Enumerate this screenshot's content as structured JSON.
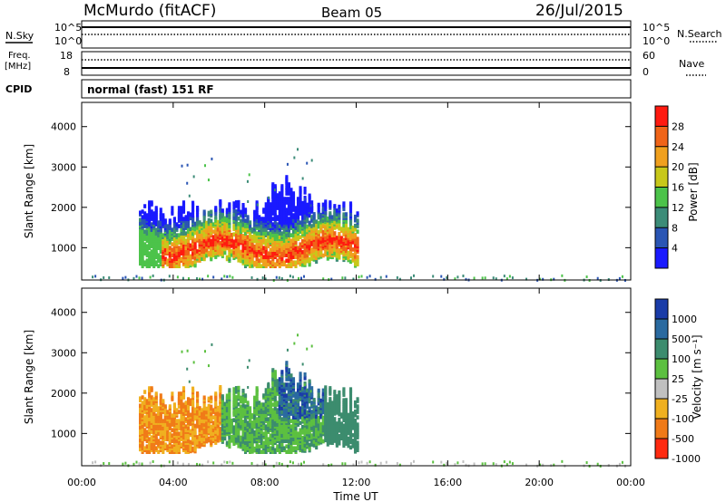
{
  "header": {
    "title": "McMurdo (fitACF)",
    "beam": "Beam 05",
    "date": "26/Jul/2015"
  },
  "status_panels": {
    "nsky_label": "N.Sky",
    "nsearch_label": "N.Search",
    "noise_ticks_left": [
      "10^5",
      "10^0"
    ],
    "noise_ticks_right": [
      "10^5",
      "10^0"
    ],
    "freq_label_line1": "Freq.",
    "freq_label_line2": "[MHz]",
    "freq_ticks": [
      "18",
      "8"
    ],
    "nave_label": "Nave",
    "nave_ticks": [
      "60",
      "0"
    ],
    "cpid_label": "CPID",
    "cpid_text": "normal (fast) 151 RF"
  },
  "chart_data": [
    {
      "type": "heatmap",
      "name": "power",
      "ylabel": "Slant Range [km]",
      "xlabel": "",
      "x_ticks": [],
      "y_ticks": [
        "1000",
        "2000",
        "3000",
        "4000"
      ],
      "ylim": [
        200,
        4600
      ],
      "colorbar": {
        "label": "Power [dB]",
        "ticks": [
          "4",
          "8",
          "12",
          "16",
          "20",
          "24",
          "28"
        ],
        "colors": [
          "#1a1aff",
          "#2a55b4",
          "#3c8c78",
          "#4cc34a",
          "#c8c81a",
          "#f0a01e",
          "#f06418",
          "#ff1a10"
        ]
      }
    },
    {
      "type": "heatmap",
      "name": "velocity",
      "ylabel": "Slant Range [km]",
      "xlabel": "Time UT",
      "x_ticks": [
        "00:00",
        "04:00",
        "08:00",
        "12:00",
        "16:00",
        "20:00",
        "00:00"
      ],
      "y_ticks": [
        "1000",
        "2000",
        "3000",
        "4000"
      ],
      "ylim": [
        200,
        4600
      ],
      "colorbar": {
        "label": "Velocity [m s⁻¹]",
        "ticks": [
          "1000",
          "500",
          "100",
          "25",
          "-25",
          "-100",
          "-500",
          "-1000"
        ],
        "colors": [
          "#1a3ca8",
          "#2a6aa0",
          "#3c8c6e",
          "#5cc040",
          "#c0c0c0",
          "#f0b020",
          "#f07a18",
          "#ff2a10"
        ]
      }
    }
  ]
}
